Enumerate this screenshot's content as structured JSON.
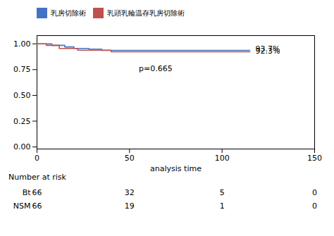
{
  "chart_data": {
    "type": "step",
    "xlabel": "analysis time",
    "series": [
      {
        "name": "乳房切除術",
        "color": "#4472C4",
        "x": [
          0,
          8,
          15,
          20,
          28,
          35,
          115
        ],
        "values": [
          1.0,
          0.985,
          0.97,
          0.955,
          0.948,
          0.937,
          0.937
        ]
      },
      {
        "name": "乳頭乳輪温存乳房切除術",
        "color": "#C0504D",
        "x": [
          0,
          5,
          12,
          22,
          40,
          115
        ],
        "values": [
          1.0,
          0.985,
          0.955,
          0.938,
          0.923,
          0.923
        ]
      }
    ],
    "xlim": [
      0,
      150
    ],
    "ylim": [
      -0.02,
      1.08
    ],
    "xticks": [
      0,
      50,
      100,
      150
    ],
    "yticks": [
      {
        "value": 0.0,
        "label": "0.00"
      },
      {
        "value": 0.25,
        "label": "0.25"
      },
      {
        "value": 0.5,
        "label": "0.50"
      },
      {
        "value": 0.75,
        "label": "0.75"
      },
      {
        "value": 1.0,
        "label": "1.00"
      }
    ],
    "annotations": [
      {
        "text": "p=0.665",
        "x": 55,
        "y": 0.76
      },
      {
        "text": "93.7%",
        "x": 118,
        "y": 0.952
      },
      {
        "text": "92.3%",
        "x": 118,
        "y": 0.93
      }
    ],
    "legend": "top",
    "risk_table": {
      "label": "Number at risk",
      "x": [
        0,
        50,
        100,
        150
      ],
      "rows": [
        {
          "name": "Bt",
          "values": [
            66,
            32,
            5,
            0
          ]
        },
        {
          "name": "NSM",
          "values": [
            66,
            19,
            1,
            0
          ]
        }
      ]
    }
  }
}
